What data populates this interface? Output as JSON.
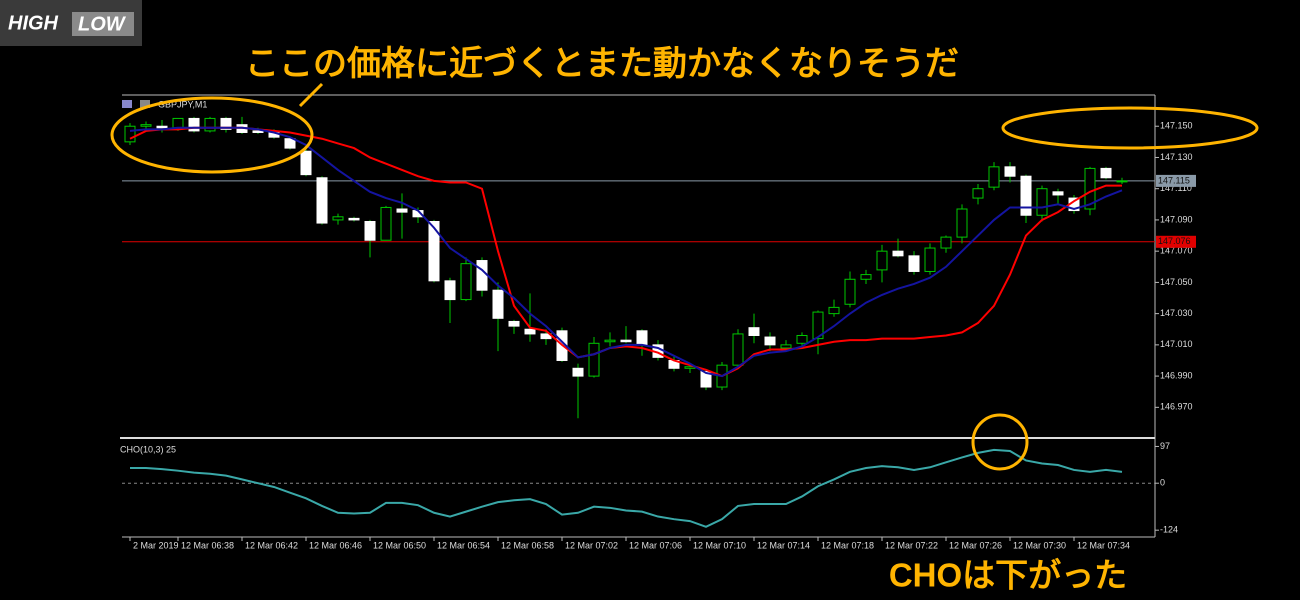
{
  "logo": {
    "high": "HIGH",
    "low": "LOW"
  },
  "annotations": {
    "headline": "ここの価格に近づくとまた動かなくなりそうだ",
    "note": "CHOは下がった"
  },
  "chart_data": [
    {
      "type": "candlestick",
      "title": "GBPJPY,M1",
      "categories": [
        "2 Mar 2019",
        null,
        null,
        "12 Mar 06:38",
        null,
        null,
        null,
        "12 Mar 06:42",
        null,
        null,
        null,
        "12 Mar 06:46",
        null,
        null,
        null,
        "12 Mar 06:50",
        null,
        null,
        null,
        "12 Mar 06:54",
        null,
        null,
        null,
        "12 Mar 06:58",
        null,
        null,
        null,
        "12 Mar 07:02",
        null,
        null,
        null,
        "12 Mar 07:06",
        null,
        null,
        null,
        "12 Mar 07:10",
        null,
        null,
        null,
        "12 Mar 07:14",
        null,
        null,
        null,
        "12 Mar 07:18",
        null,
        null,
        null,
        "12 Mar 07:22",
        null,
        null,
        null,
        "12 Mar 07:26",
        null,
        null,
        null,
        "12 Mar 07:30",
        null,
        null,
        null,
        "12 Mar 07:34",
        null,
        null,
        null
      ],
      "open": [
        147.14,
        147.15,
        147.15,
        147.149,
        147.155,
        147.147,
        147.155,
        147.151,
        147.147,
        147.146,
        147.142,
        147.134,
        147.117,
        147.09,
        147.091,
        147.089,
        147.077,
        147.097,
        147.096,
        147.089,
        147.051,
        147.039,
        147.064,
        147.045,
        147.025,
        147.02,
        147.017,
        147.019,
        146.995,
        146.99,
        147.012,
        147.013,
        147.019,
        147.01,
        147.0,
        146.995,
        146.993,
        146.983,
        146.997,
        147.021,
        147.015,
        147.008,
        147.011,
        147.014,
        147.03,
        147.036,
        147.052,
        147.058,
        147.07,
        147.067,
        147.057,
        147.072,
        147.079,
        147.104,
        147.111,
        147.124,
        147.118,
        147.093,
        147.108,
        147.104,
        147.097,
        147.123,
        147.115
      ],
      "high": [
        147.152,
        147.153,
        147.154,
        147.155,
        147.156,
        147.156,
        147.156,
        147.156,
        147.149,
        147.148,
        147.143,
        147.135,
        147.118,
        147.094,
        147.092,
        147.09,
        147.099,
        147.107,
        147.098,
        147.09,
        147.053,
        147.066,
        147.066,
        147.05,
        147.026,
        147.043,
        147.02,
        147.021,
        146.998,
        147.015,
        147.018,
        147.022,
        147.02,
        147.013,
        147.003,
        146.998,
        146.994,
        146.999,
        147.02,
        147.03,
        147.018,
        147.013,
        147.018,
        147.032,
        147.039,
        147.057,
        147.058,
        147.074,
        147.078,
        147.07,
        147.075,
        147.08,
        147.1,
        147.113,
        147.127,
        147.127,
        147.119,
        147.112,
        147.11,
        147.106,
        147.124,
        147.124,
        147.117
      ],
      "low": [
        147.138,
        147.147,
        147.146,
        147.147,
        147.146,
        147.146,
        147.146,
        147.145,
        147.145,
        147.142,
        147.135,
        147.118,
        147.087,
        147.087,
        147.089,
        147.066,
        147.077,
        147.078,
        147.088,
        147.05,
        147.024,
        147.038,
        147.041,
        147.006,
        147.017,
        147.012,
        147.01,
        146.999,
        146.963,
        146.989,
        147.009,
        147.011,
        147.003,
        147.0,
        146.993,
        146.992,
        146.981,
        146.981,
        146.995,
        147.011,
        147.006,
        147.006,
        147.008,
        147.004,
        147.028,
        147.034,
        147.049,
        147.05,
        147.066,
        147.055,
        147.055,
        147.069,
        147.075,
        147.1,
        147.109,
        147.114,
        147.088,
        147.089,
        147.1,
        147.094,
        147.093,
        147.116,
        147.113
      ],
      "close": [
        147.15,
        147.151,
        147.149,
        147.155,
        147.147,
        147.155,
        147.148,
        147.146,
        147.146,
        147.143,
        147.136,
        147.119,
        147.088,
        147.092,
        147.09,
        147.077,
        147.098,
        147.095,
        147.092,
        147.051,
        147.039,
        147.062,
        147.045,
        147.027,
        147.022,
        147.017,
        147.014,
        147.0,
        146.99,
        147.011,
        147.013,
        147.012,
        147.01,
        147.002,
        146.995,
        146.996,
        146.983,
        146.997,
        147.017,
        147.016,
        147.01,
        147.01,
        147.016,
        147.031,
        147.034,
        147.052,
        147.055,
        147.07,
        147.067,
        147.057,
        147.072,
        147.079,
        147.097,
        147.11,
        147.124,
        147.118,
        147.093,
        147.11,
        147.106,
        147.096,
        147.123,
        147.117,
        147.115
      ],
      "bull_color": "#00c800",
      "bear_color": "#ffffff",
      "lines": [
        {
          "color": "#ff0000",
          "values": [
            147.142,
            147.147,
            147.148,
            147.148,
            147.149,
            147.149,
            147.149,
            147.149,
            147.148,
            147.147,
            147.146,
            147.144,
            147.142,
            147.139,
            147.136,
            147.13,
            147.126,
            147.122,
            147.118,
            147.115,
            147.114,
            147.114,
            147.11,
            147.07,
            147.035,
            147.021,
            147.019,
            147.01,
            147.002,
            147.004,
            147.008,
            147.009,
            147.008,
            147.005,
            147.0,
            146.997,
            146.994,
            146.99,
            146.995,
            147.004,
            147.007,
            147.007,
            147.008,
            147.01,
            147.012,
            147.013,
            147.013,
            147.014,
            147.014,
            147.014,
            147.015,
            147.016,
            147.018,
            147.024,
            147.035,
            147.055,
            147.08,
            147.09,
            147.095,
            147.102,
            147.108,
            147.112,
            147.112
          ]
        },
        {
          "color": "#1414a0",
          "values": [
            147.147,
            147.148,
            147.148,
            147.149,
            147.149,
            147.149,
            147.149,
            147.149,
            147.148,
            147.146,
            147.143,
            147.138,
            147.13,
            147.122,
            147.115,
            147.108,
            147.104,
            147.101,
            147.096,
            147.085,
            147.072,
            147.065,
            147.058,
            147.048,
            147.04,
            147.03,
            147.022,
            147.012,
            147.002,
            147.004,
            147.008,
            147.01,
            147.01,
            147.008,
            147.003,
            146.998,
            146.992,
            146.99,
            146.996,
            147.003,
            147.005,
            147.006,
            147.009,
            147.015,
            147.022,
            147.03,
            147.037,
            147.042,
            147.046,
            147.049,
            147.053,
            147.06,
            147.07,
            147.08,
            147.09,
            147.098,
            147.098,
            147.098,
            147.1,
            147.097,
            147.1,
            147.105,
            147.109
          ]
        }
      ],
      "price_lines": [
        {
          "value": 147.115,
          "color": "#8a9aa8"
        },
        {
          "value": 147.076,
          "color": "#e00000"
        }
      ],
      "ylim": [
        146.951,
        147.17
      ],
      "yticks": [
        {
          "value": 147.15,
          "label": "147.150"
        },
        {
          "value": 147.13,
          "label": "147.130"
        },
        {
          "value": 147.11,
          "label": "147.110"
        },
        {
          "value": 147.09,
          "label": "147.090"
        },
        {
          "value": 147.07,
          "label": "147.070"
        },
        {
          "value": 147.05,
          "label": "147.050"
        },
        {
          "value": 147.03,
          "label": "147.030"
        },
        {
          "value": 147.01,
          "label": "147.010"
        },
        {
          "value": 146.99,
          "label": "146.990"
        },
        {
          "value": 146.97,
          "label": "146.970"
        }
      ]
    },
    {
      "type": "line",
      "title": "CHO(10,3) 25",
      "color": "#3aa8a8",
      "values": [
        40,
        40,
        37,
        33,
        28,
        25,
        20,
        10,
        0,
        -10,
        -25,
        -40,
        -60,
        -78,
        -80,
        -78,
        -52,
        -52,
        -58,
        -78,
        -88,
        -75,
        -62,
        -50,
        -45,
        -42,
        -55,
        -83,
        -78,
        -62,
        -65,
        -72,
        -75,
        -88,
        -95,
        -100,
        -115,
        -95,
        -60,
        -55,
        -55,
        -55,
        -35,
        -8,
        10,
        30,
        40,
        45,
        42,
        35,
        42,
        55,
        68,
        80,
        88,
        85,
        60,
        52,
        48,
        35,
        30,
        35,
        30
      ],
      "ylim": [
        -142,
        114
      ],
      "yticks": [
        97,
        0,
        -124
      ]
    }
  ]
}
